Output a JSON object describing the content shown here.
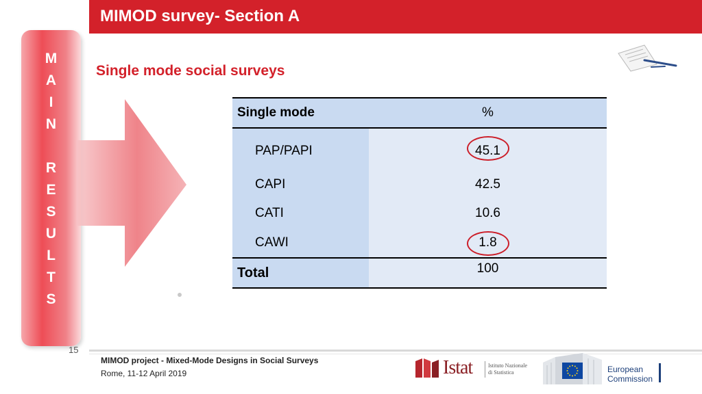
{
  "header": {
    "title": "MIMOD survey- Section A"
  },
  "sidebar": {
    "letters": [
      "M",
      "A",
      "I",
      "N",
      "",
      "R",
      "E",
      "S",
      "U",
      "L",
      "T",
      "S"
    ]
  },
  "section": {
    "heading": "Single mode social surveys"
  },
  "table": {
    "headers": [
      "Single mode",
      "%"
    ],
    "rows": [
      {
        "label": "PAP/PAPI",
        "value": "45.1",
        "circled": true
      },
      {
        "label": "CAPI",
        "value": "42.5",
        "circled": false
      },
      {
        "label": "CATI",
        "value": "10.6",
        "circled": false
      },
      {
        "label": "CAWI",
        "value": "1.8",
        "circled": true
      }
    ],
    "total": {
      "label": "Total",
      "value": "100"
    }
  },
  "footer": {
    "page_number": "15",
    "project": "MIMOD project - Mixed-Mode Designs in Social Surveys",
    "place_date": "Rome, 11-12 April 2019"
  },
  "logos": {
    "istat_word": "Istat",
    "istat_sub": [
      "Istituto Nazionale",
      "di Statistica"
    ],
    "ec_text": [
      "European",
      "Commission"
    ]
  },
  "colors": {
    "accent_red": "#d3212a",
    "table_header_blue": "#c9daf1",
    "table_cell_blue": "#e2eaf6",
    "ec_blue": "#1c3f7a"
  }
}
